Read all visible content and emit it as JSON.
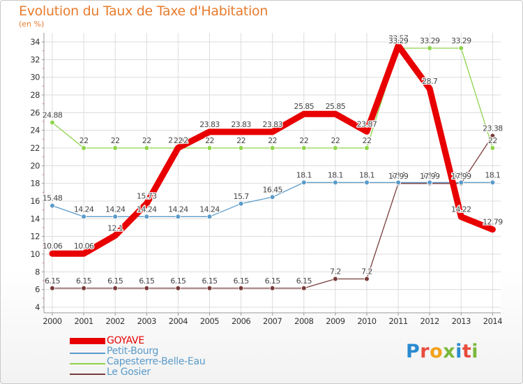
{
  "header": {
    "title": "Evolution du Taux de Taxe d'Habitation",
    "subtitle": "(en %)"
  },
  "brand": {
    "letters": [
      {
        "ch": "P",
        "color": "#2a8bd0"
      },
      {
        "ch": "r",
        "color": "#e84c3d"
      },
      {
        "ch": "o",
        "color": "#f3a21c"
      },
      {
        "ch": "x",
        "color": "#7ab83c"
      },
      {
        "ch": "i",
        "color": "#2a8bd0"
      },
      {
        "ch": "t",
        "color": "#e84c3d"
      },
      {
        "ch": "i",
        "color": "#7ab83c"
      }
    ]
  },
  "chart_data": {
    "type": "line",
    "title": "Evolution du Taux de Taxe d'Habitation",
    "ylabel": "(en %)",
    "xlabel": "",
    "x": [
      "2000",
      "2001",
      "2002",
      "2003",
      "2004",
      "2005",
      "2006",
      "2007",
      "2008",
      "2009",
      "2010",
      "2011",
      "2012",
      "2013",
      "2014"
    ],
    "ylim": [
      4,
      34
    ],
    "yticks": [
      4,
      6,
      8,
      10,
      12,
      14,
      16,
      18,
      20,
      22,
      24,
      26,
      28,
      30,
      32,
      34
    ],
    "grid": true,
    "legend_position": "bottom-left",
    "series": [
      {
        "name": "GOYAVE",
        "color": "#e80000",
        "values": [
          10.06,
          10.06,
          12.1,
          15.73,
          22.02,
          23.83,
          23.83,
          23.83,
          25.85,
          25.85,
          23.87,
          33.57,
          28.7,
          14.22,
          12.79
        ],
        "labels": [
          "10.06",
          "10.06",
          "12.1",
          "15.73",
          "22.02",
          "23.83",
          "23.83",
          "23.83",
          "25.85",
          "25.85",
          "23.87",
          "33.57",
          "28.7",
          "14.22",
          "12.79"
        ]
      },
      {
        "name": "Petit-Bourg",
        "color": "#5b9bc9",
        "values": [
          15.48,
          14.24,
          14.24,
          14.24,
          14.24,
          14.24,
          15.7,
          16.45,
          18.1,
          18.1,
          18.1,
          18.1,
          18.1,
          18.1,
          18.1
        ],
        "labels": [
          "15.48",
          "14.24",
          "14.24",
          "14.24",
          "14.24",
          "14.24",
          "15.7",
          "16.45",
          "18.1",
          "18.1",
          "18.1",
          "18.1",
          "18.1",
          "18.1",
          "18.1"
        ]
      },
      {
        "name": "Capesterre-Belle-Eau",
        "color": "#8ed44a",
        "values": [
          24.88,
          22,
          22,
          22,
          22,
          22,
          22,
          22,
          22,
          22,
          22,
          33.29,
          33.29,
          33.29,
          22
        ],
        "labels": [
          "24.88",
          "22",
          "22",
          "22",
          "22",
          "22",
          "22",
          "22",
          "22",
          "22",
          "22",
          "33.29",
          "33.29",
          "33.29",
          "22"
        ]
      },
      {
        "name": "Le Gosier",
        "color": "#7a3b3b",
        "values": [
          6.15,
          6.15,
          6.15,
          6.15,
          6.15,
          6.15,
          6.15,
          6.15,
          6.15,
          7.2,
          7.2,
          17.99,
          17.99,
          17.99,
          23.38
        ],
        "labels": [
          "6.15",
          "6.15",
          "6.15",
          "6.15",
          "6.15",
          "6.15",
          "6.15",
          "6.15",
          "6.15",
          "7.2",
          "7.2",
          "17.99",
          "17.99",
          "17.99",
          "23.38"
        ]
      }
    ]
  }
}
